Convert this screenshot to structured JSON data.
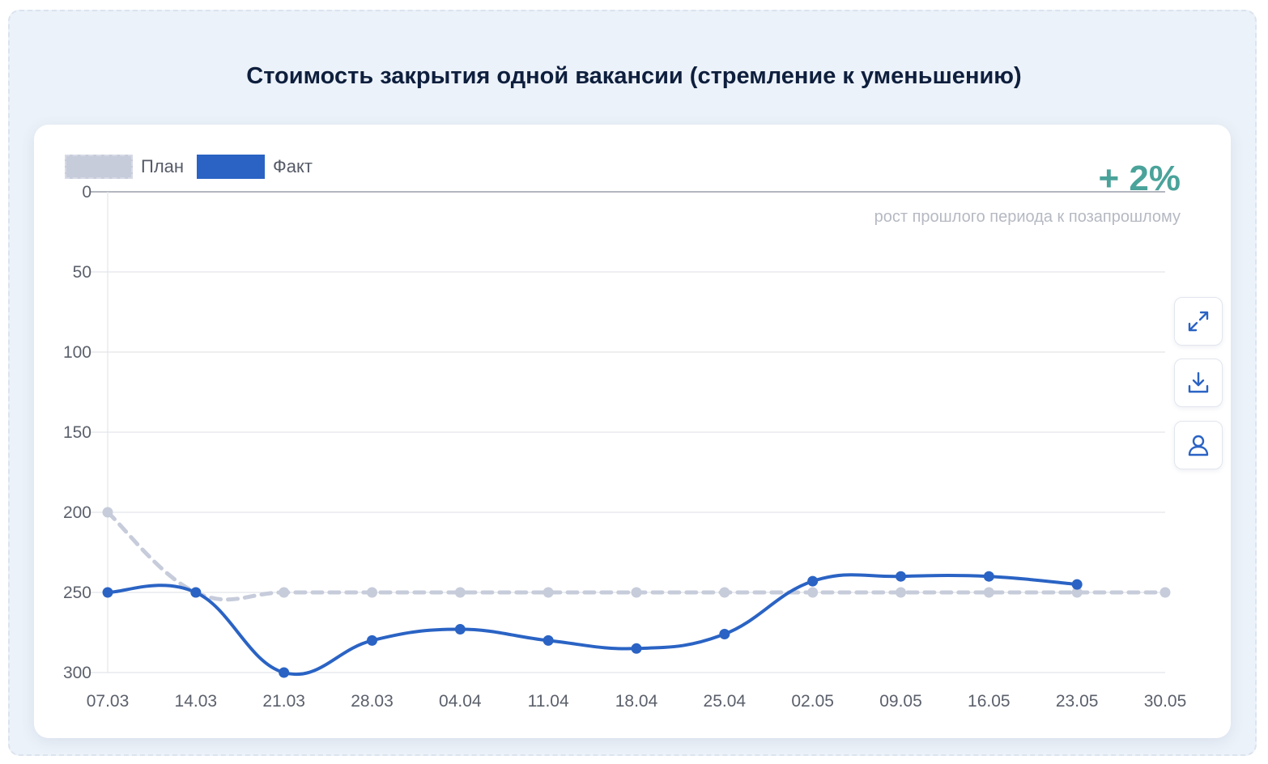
{
  "title": "Стоимость закрытия одной вакансии (стремление к уменьшению)",
  "legend": {
    "plan_label": "План",
    "fact_label": "Факт"
  },
  "growth": {
    "value": "+ 2%",
    "caption": "рост прошлого периода к позапрошлому"
  },
  "buttons": {
    "expand_icon": "expand-icon",
    "download_icon": "download-icon",
    "user_icon": "user-icon"
  },
  "colors": {
    "plan": "#c7ccdb",
    "fact": "#2a63c4",
    "growth": "#4aa39a"
  },
  "chart_data": {
    "type": "line",
    "categories": [
      "07.03",
      "14.03",
      "21.03",
      "28.03",
      "04.04",
      "11.04",
      "18.04",
      "25.04",
      "02.05",
      "09.05",
      "16.05",
      "23.05",
      "30.05"
    ],
    "series": [
      {
        "name": "План",
        "values": [
          200,
          250,
          250,
          250,
          250,
          250,
          250,
          250,
          250,
          250,
          250,
          250,
          250
        ],
        "style": "dashed"
      },
      {
        "name": "Факт",
        "values": [
          250,
          250,
          300,
          280,
          273,
          280,
          285,
          276,
          243,
          240,
          240,
          245,
          null
        ],
        "style": "solid"
      }
    ],
    "y_ticks": [
      0,
      50,
      100,
      150,
      200,
      250,
      300
    ],
    "ylim": [
      0,
      300
    ],
    "y_inverted": true,
    "grid": true,
    "legend_position": "top-left"
  }
}
